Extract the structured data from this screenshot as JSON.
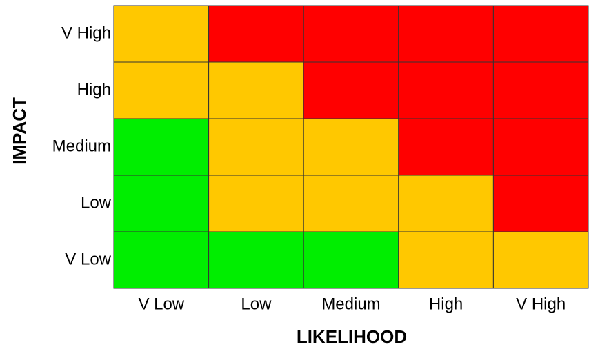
{
  "y_axis_label": "IMPACT",
  "x_axis_label": "LIKELIHOOD",
  "columns": [
    "V Low",
    "Low",
    "Medium",
    "High",
    "V High"
  ],
  "rows": [
    {
      "label": "V High",
      "cells": [
        "#ffc800",
        "#ff0000",
        "#ff0000",
        "#ff0000",
        "#ff0000"
      ]
    },
    {
      "label": "High",
      "cells": [
        "#ffc800",
        "#ffc800",
        "#ff0000",
        "#ff0000",
        "#ff0000"
      ]
    },
    {
      "label": "Medium",
      "cells": [
        "#00ee00",
        "#ffc800",
        "#ffc800",
        "#ff0000",
        "#ff0000"
      ]
    },
    {
      "label": "Low",
      "cells": [
        "#00ee00",
        "#ffc800",
        "#ffc800",
        "#ffc800",
        "#ff0000"
      ]
    },
    {
      "label": "V Low",
      "cells": [
        "#00ee00",
        "#00ee00",
        "#00ee00",
        "#ffc800",
        "#ffc800"
      ]
    }
  ]
}
